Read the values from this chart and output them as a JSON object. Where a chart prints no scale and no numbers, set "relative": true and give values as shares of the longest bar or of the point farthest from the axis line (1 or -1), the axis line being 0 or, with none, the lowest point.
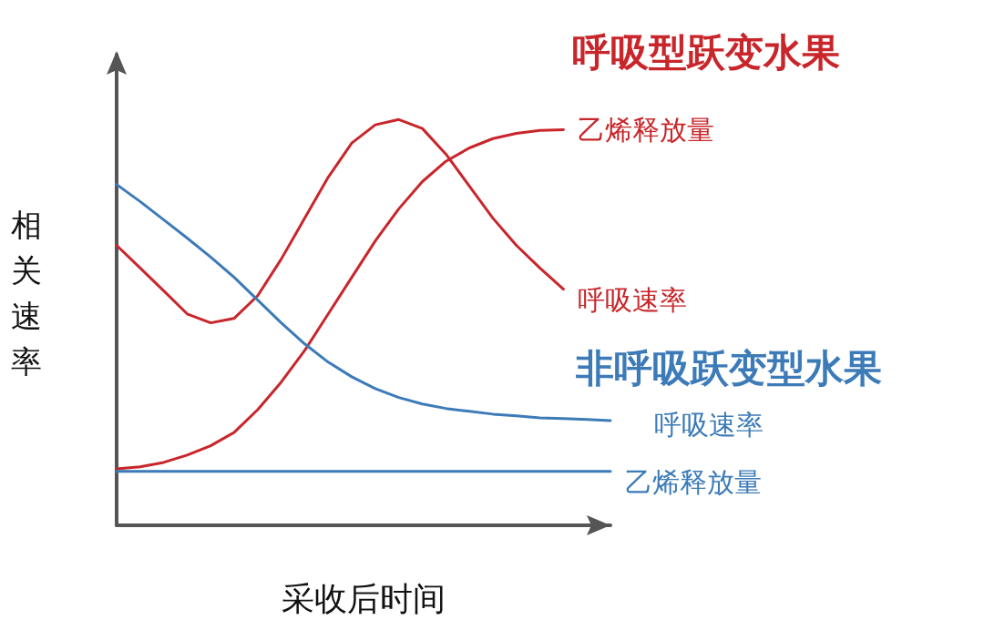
{
  "chart_data": {
    "type": "line",
    "relative": true,
    "xlabel": "采收后时间",
    "ylabel": "相关速率",
    "annotations": [
      "呼吸型跃变水果",
      "非呼吸跃变型水果"
    ],
    "categories": [
      null,
      null,
      null,
      null,
      null,
      null,
      null,
      null,
      null,
      null,
      null,
      null,
      null,
      null,
      null,
      null,
      null,
      null,
      null,
      null,
      null,
      null
    ],
    "series": [
      {
        "name": "乙烯释放量",
        "color": "#c8262b",
        "values": [
          0.139,
          0.144,
          0.155,
          0.173,
          0.196,
          0.229,
          0.285,
          0.353,
          0.431,
          0.521,
          0.611,
          0.701,
          0.78,
          0.847,
          0.897,
          0.93,
          0.953,
          0.966,
          0.973,
          0.975,
          null,
          null
        ]
      },
      {
        "name": "呼吸速率",
        "color": "#c8262b",
        "values": [
          0.69,
          0.634,
          0.578,
          0.521,
          0.499,
          0.51,
          0.566,
          0.656,
          0.757,
          0.858,
          0.942,
          0.987,
          1.0,
          0.978,
          0.915,
          0.836,
          0.757,
          0.69,
          0.634,
          0.582,
          null,
          null
        ]
      },
      {
        "name": "呼吸速率",
        "color": "#3c7bb8",
        "values": [
          0.84,
          0.798,
          0.753,
          0.708,
          0.661,
          0.611,
          0.555,
          0.499,
          0.447,
          0.402,
          0.366,
          0.337,
          0.315,
          0.299,
          0.288,
          0.281,
          0.274,
          0.27,
          0.265,
          0.263,
          0.261,
          0.258
        ]
      },
      {
        "name": "乙烯释放量",
        "color": "#3c7bb8",
        "values": [
          0.133,
          0.133,
          0.133,
          0.133,
          0.133,
          0.133,
          0.133,
          0.133,
          0.133,
          0.133,
          0.133,
          0.133,
          0.133,
          0.133,
          0.133,
          0.133,
          0.133,
          0.133,
          0.133,
          0.133,
          0.133,
          0.133
        ]
      }
    ],
    "legend": false,
    "grid": false,
    "marker": "none",
    "line_style": "solid"
  }
}
